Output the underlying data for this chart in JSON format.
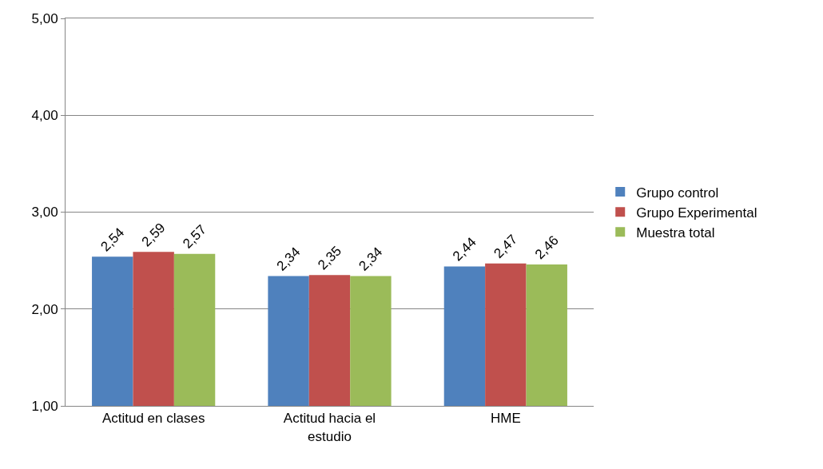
{
  "chart_data": {
    "type": "bar",
    "categories": [
      "Actitud en clases",
      "Actitud hacia el estudio",
      "HME"
    ],
    "series": [
      {
        "name": "Grupo control",
        "color": "#4f81bd",
        "values": [
          2.54,
          2.34,
          2.44
        ],
        "value_labels": [
          "2,54",
          "2,34",
          "2,44"
        ]
      },
      {
        "name": "Grupo Experimental",
        "color": "#c0504d",
        "values": [
          2.59,
          2.35,
          2.47
        ],
        "value_labels": [
          "2,59",
          "2,35",
          "2,47"
        ]
      },
      {
        "name": "Muestra total",
        "color": "#9bbb59",
        "values": [
          2.57,
          2.34,
          2.46
        ],
        "value_labels": [
          "2,57",
          "2,34",
          "2,46"
        ]
      }
    ],
    "ylim": [
      1,
      5
    ],
    "yticks": [
      {
        "value": 1,
        "label": "1,00"
      },
      {
        "value": 2,
        "label": "2,00"
      },
      {
        "value": 3,
        "label": "3,00"
      },
      {
        "value": 4,
        "label": "4,00"
      },
      {
        "value": 5,
        "label": "5,00"
      }
    ],
    "grid": "y",
    "legend": "right"
  }
}
